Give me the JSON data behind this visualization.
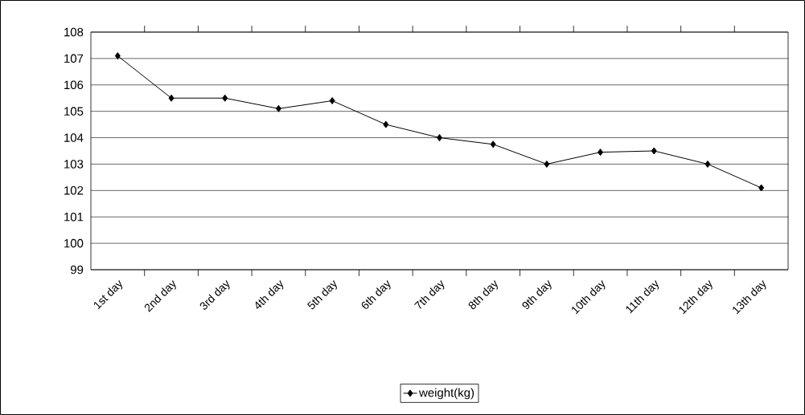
{
  "chart_data": {
    "type": "line",
    "categories": [
      "1st day",
      "2nd day",
      "3rd day",
      "4th day",
      "5th day",
      "6th day",
      "7th day",
      "8th day",
      "9th day",
      "10th day",
      "11th day",
      "12th day",
      "13th day"
    ],
    "series": [
      {
        "name": "weight(kg)",
        "color": "#000000",
        "values": [
          107.1,
          105.5,
          105.5,
          105.1,
          105.4,
          104.5,
          104.0,
          103.75,
          103.0,
          103.45,
          103.5,
          103.0,
          102.1
        ]
      }
    ],
    "ylim": [
      99,
      108
    ],
    "yticks": [
      99,
      100,
      101,
      102,
      103,
      104,
      105,
      106,
      107,
      108
    ],
    "grid": "y",
    "legend": "bottom",
    "marker": "diamond",
    "line_style": "solid"
  }
}
